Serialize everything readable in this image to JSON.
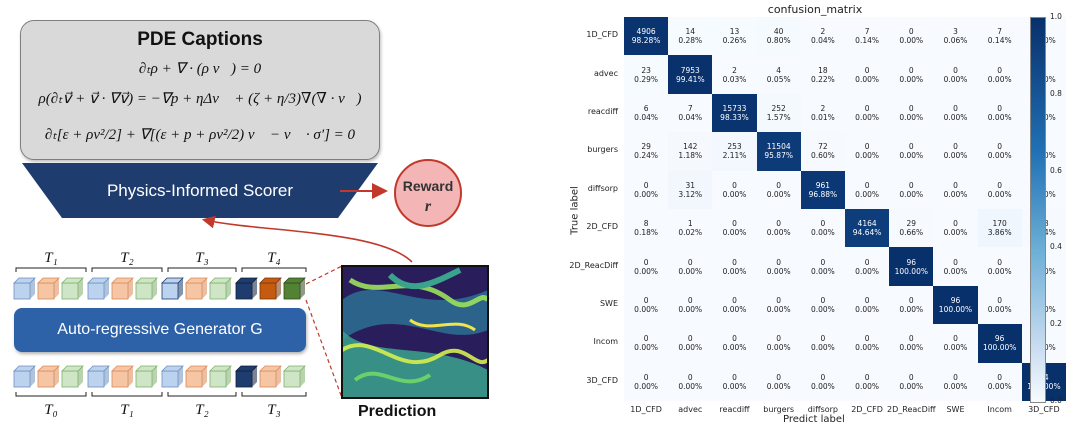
{
  "left": {
    "pde_title": "PDE Captions",
    "eq1": "∂ₜρ + ∇ · (ρ v⃗) = 0",
    "eq2": "ρ(∂ₜv⃗ + v⃗ · ∇v⃗) = −∇p + ηΔv⃗ + (ζ + η/3)∇(∇ · v⃗)",
    "eq3": "∂ₜ[ε + ρv²/2] + ∇[(ε + p + ρv²/2) v⃗ − v⃗ · σ′] = 0",
    "scorer": "Physics-Informed Scorer",
    "reward_line1": "Reward",
    "reward_line2": "r",
    "generator": "Auto-regressive Generator G",
    "top_tokens": [
      "T₁",
      "T₂",
      "T₃",
      "T₄"
    ],
    "bottom_tokens": [
      "T₀",
      "T₁",
      "T₂",
      "T₃"
    ],
    "prediction": "Prediction",
    "colors": {
      "scorer": "#1f3c6e",
      "generator": "#2e62a8",
      "reward_fill": "#f3b5b5",
      "reward_stroke": "#c0392b",
      "arrow": "#c0392b",
      "blue_block": "#bcd3ef",
      "orange_block": "#f6c6a4",
      "green_block": "#cfe6c6",
      "dark_blue_block": "#1f3c6e",
      "dark_orange_block": "#c55a11",
      "dark_green_block": "#548235"
    }
  },
  "chart_data": {
    "type": "heatmap",
    "title": "confusion_matrix",
    "xlabel": "Predict label",
    "ylabel": "True label",
    "labels": [
      "1D_CFD",
      "advec",
      "reacdiff",
      "burgers",
      "diffsorp",
      "2D_CFD",
      "2D_ReacDiff",
      "SWE",
      "Incom",
      "3D_CFD"
    ],
    "counts": [
      [
        4906,
        14,
        13,
        40,
        2,
        7,
        0,
        3,
        7,
        0
      ],
      [
        23,
        7953,
        2,
        4,
        18,
        0,
        0,
        0,
        0,
        0
      ],
      [
        6,
        7,
        15733,
        252,
        2,
        0,
        0,
        0,
        0,
        0
      ],
      [
        29,
        142,
        253,
        11504,
        72,
        0,
        0,
        0,
        0,
        0
      ],
      [
        0,
        31,
        0,
        0,
        961,
        0,
        0,
        0,
        0,
        0
      ],
      [
        8,
        1,
        0,
        0,
        0,
        4164,
        29,
        0,
        170,
        28
      ],
      [
        0,
        0,
        0,
        0,
        0,
        0,
        96,
        0,
        0,
        0
      ],
      [
        0,
        0,
        0,
        0,
        0,
        0,
        0,
        96,
        0,
        0
      ],
      [
        0,
        0,
        0,
        0,
        0,
        0,
        0,
        0,
        96,
        0
      ],
      [
        0,
        0,
        0,
        0,
        0,
        0,
        0,
        0,
        0,
        64
      ]
    ],
    "percents": [
      [
        "98.28%",
        "0.28%",
        "0.26%",
        "0.80%",
        "0.04%",
        "0.14%",
        "0.00%",
        "0.06%",
        "0.14%",
        "0.00%"
      ],
      [
        "0.29%",
        "99.41%",
        "0.03%",
        "0.05%",
        "0.22%",
        "0.00%",
        "0.00%",
        "0.00%",
        "0.00%",
        "0.00%"
      ],
      [
        "0.04%",
        "0.04%",
        "98.33%",
        "1.57%",
        "0.01%",
        "0.00%",
        "0.00%",
        "0.00%",
        "0.00%",
        "0.00%"
      ],
      [
        "0.24%",
        "1.18%",
        "2.11%",
        "95.87%",
        "0.60%",
        "0.00%",
        "0.00%",
        "0.00%",
        "0.00%",
        "0.00%"
      ],
      [
        "0.00%",
        "3.12%",
        "0.00%",
        "0.00%",
        "96.88%",
        "0.00%",
        "0.00%",
        "0.00%",
        "0.00%",
        "0.00%"
      ],
      [
        "0.18%",
        "0.02%",
        "0.00%",
        "0.00%",
        "0.00%",
        "94.64%",
        "0.66%",
        "0.00%",
        "3.86%",
        "0.64%"
      ],
      [
        "0.00%",
        "0.00%",
        "0.00%",
        "0.00%",
        "0.00%",
        "0.00%",
        "100.00%",
        "0.00%",
        "0.00%",
        "0.00%"
      ],
      [
        "0.00%",
        "0.00%",
        "0.00%",
        "0.00%",
        "0.00%",
        "0.00%",
        "0.00%",
        "100.00%",
        "0.00%",
        "0.00%"
      ],
      [
        "0.00%",
        "0.00%",
        "0.00%",
        "0.00%",
        "0.00%",
        "0.00%",
        "0.00%",
        "0.00%",
        "100.00%",
        "0.00%"
      ],
      [
        "0.00%",
        "0.00%",
        "0.00%",
        "0.00%",
        "0.00%",
        "0.00%",
        "0.00%",
        "0.00%",
        "0.00%",
        "100.00%"
      ]
    ],
    "colorbar_ticks": [
      "1.0",
      "0.8",
      "0.6",
      "0.4",
      "0.2",
      "0.0"
    ],
    "colorbar_range": [
      0,
      1
    ],
    "colormap": {
      "low": "#f7fbff",
      "high": "#08306b"
    }
  }
}
